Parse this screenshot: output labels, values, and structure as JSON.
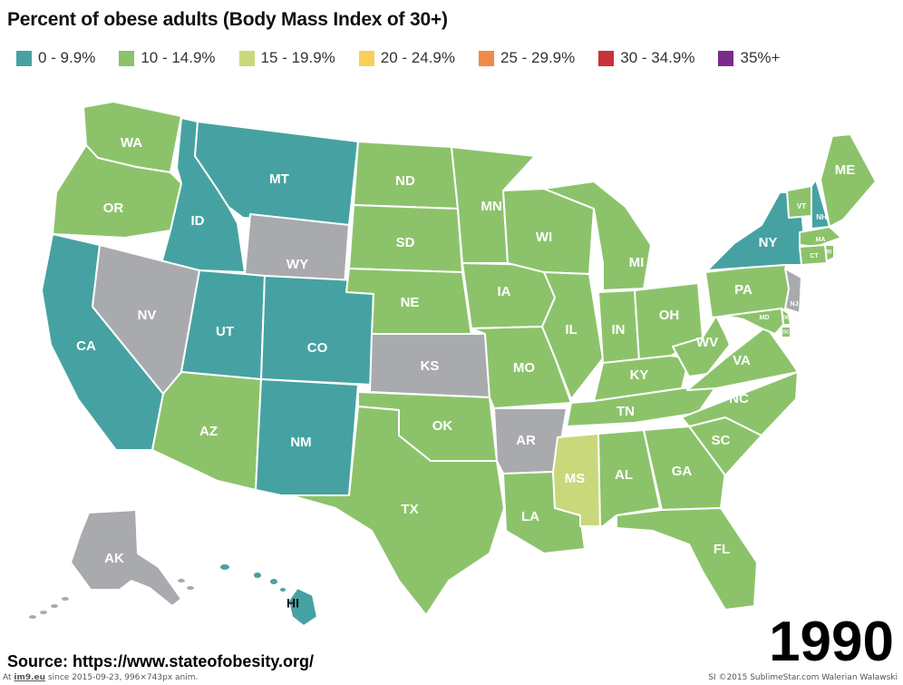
{
  "title": "Percent of obese adults (Body Mass Index of 30+)",
  "legend": [
    {
      "label": "0 - 9.9%",
      "color": "#46a2a2"
    },
    {
      "label": "10 - 14.9%",
      "color": "#8cc36a"
    },
    {
      "label": "15 - 19.9%",
      "color": "#c9d87a"
    },
    {
      "label": "20 - 24.9%",
      "color": "#f7d05a"
    },
    {
      "label": "25 - 29.9%",
      "color": "#f08a4b"
    },
    {
      "label": "30 - 34.9%",
      "color": "#c8323a"
    },
    {
      "label": "35%+",
      "color": "#7b2c8a"
    }
  ],
  "no_data_color": "#a9aaad",
  "states": [
    {
      "abbr": "WA",
      "bin": 1
    },
    {
      "abbr": "OR",
      "bin": 1
    },
    {
      "abbr": "CA",
      "bin": 0
    },
    {
      "abbr": "ID",
      "bin": 0
    },
    {
      "abbr": "NV",
      "bin": null
    },
    {
      "abbr": "MT",
      "bin": 0
    },
    {
      "abbr": "WY",
      "bin": null
    },
    {
      "abbr": "UT",
      "bin": 0
    },
    {
      "abbr": "AZ",
      "bin": 1
    },
    {
      "abbr": "CO",
      "bin": 0
    },
    {
      "abbr": "NM",
      "bin": 0
    },
    {
      "abbr": "ND",
      "bin": 1
    },
    {
      "abbr": "SD",
      "bin": 1
    },
    {
      "abbr": "NE",
      "bin": 1
    },
    {
      "abbr": "KS",
      "bin": null
    },
    {
      "abbr": "OK",
      "bin": 1
    },
    {
      "abbr": "TX",
      "bin": 1
    },
    {
      "abbr": "MN",
      "bin": 1
    },
    {
      "abbr": "IA",
      "bin": 1
    },
    {
      "abbr": "MO",
      "bin": 1
    },
    {
      "abbr": "AR",
      "bin": null
    },
    {
      "abbr": "LA",
      "bin": 1
    },
    {
      "abbr": "WI",
      "bin": 1
    },
    {
      "abbr": "IL",
      "bin": 1
    },
    {
      "abbr": "MI",
      "bin": 1
    },
    {
      "abbr": "IN",
      "bin": 1
    },
    {
      "abbr": "OH",
      "bin": 1
    },
    {
      "abbr": "KY",
      "bin": 1
    },
    {
      "abbr": "TN",
      "bin": 1
    },
    {
      "abbr": "MS",
      "bin": 2
    },
    {
      "abbr": "AL",
      "bin": 1
    },
    {
      "abbr": "GA",
      "bin": 1
    },
    {
      "abbr": "FL",
      "bin": 1
    },
    {
      "abbr": "SC",
      "bin": 1
    },
    {
      "abbr": "NC",
      "bin": 1
    },
    {
      "abbr": "VA",
      "bin": 1
    },
    {
      "abbr": "WV",
      "bin": 1
    },
    {
      "abbr": "PA",
      "bin": 1
    },
    {
      "abbr": "NY",
      "bin": 0
    },
    {
      "abbr": "VT",
      "bin": 1
    },
    {
      "abbr": "NH",
      "bin": 0
    },
    {
      "abbr": "ME",
      "bin": 1
    },
    {
      "abbr": "MA",
      "bin": 1
    },
    {
      "abbr": "CT",
      "bin": 1
    },
    {
      "abbr": "RI",
      "bin": 1
    },
    {
      "abbr": "NJ",
      "bin": null
    },
    {
      "abbr": "DE",
      "bin": 1
    },
    {
      "abbr": "MD",
      "bin": 1
    },
    {
      "abbr": "DC",
      "bin": 1
    },
    {
      "abbr": "AK",
      "bin": null
    },
    {
      "abbr": "HI",
      "bin": 0
    }
  ],
  "year": "1990",
  "source": "Source:  https://www.stateofobesity.org/",
  "footer": {
    "at": "At",
    "site": "im9.eu",
    "left_rest": "since 2015-09-23, 996×743px anim.",
    "right": "SI ©2015 SublimeStar.com Walerian Walawski"
  }
}
